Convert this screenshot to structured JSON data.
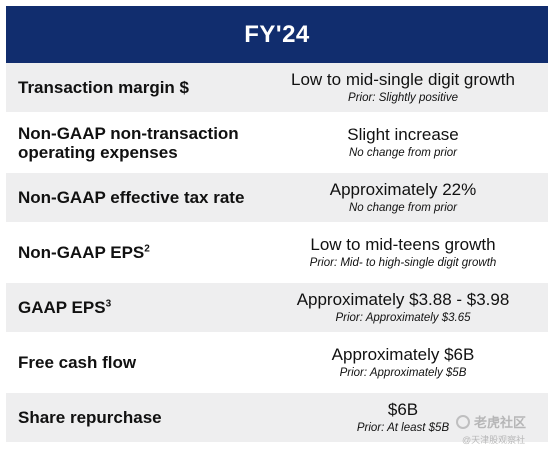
{
  "header": {
    "title": "FY'24"
  },
  "rows": [
    {
      "label": "Transaction margin $",
      "sup": "",
      "value": "Low to mid-single digit growth",
      "prior": "Prior: Slightly positive"
    },
    {
      "label": "Non-GAAP non-transaction operating expenses",
      "sup": "",
      "value": "Slight increase",
      "prior": "No change from prior"
    },
    {
      "label": "Non-GAAP effective tax rate",
      "sup": "",
      "value": "Approximately 22%",
      "prior": "No change from prior"
    },
    {
      "label": "Non-GAAP EPS",
      "sup": "2",
      "value": "Low to mid-teens growth",
      "prior": "Prior: Mid- to high-single digit growth"
    },
    {
      "label": "GAAP EPS",
      "sup": "3",
      "value": "Approximately $3.88 - $3.98",
      "prior": "Prior: Approximately $3.65"
    },
    {
      "label": "Free cash flow",
      "sup": "",
      "value": "Approximately $6B",
      "prior": "Prior: Approximately $5B"
    },
    {
      "label": "Share repurchase",
      "sup": "",
      "value": "$6B",
      "prior": "Prior: At least $5B"
    }
  ],
  "watermark": {
    "brand": "老虎社区",
    "sub": "@天津股观察社"
  },
  "colors": {
    "header_bg": "#112d6e",
    "row_alt_bg": "#eeeeef",
    "text": "#111111"
  }
}
